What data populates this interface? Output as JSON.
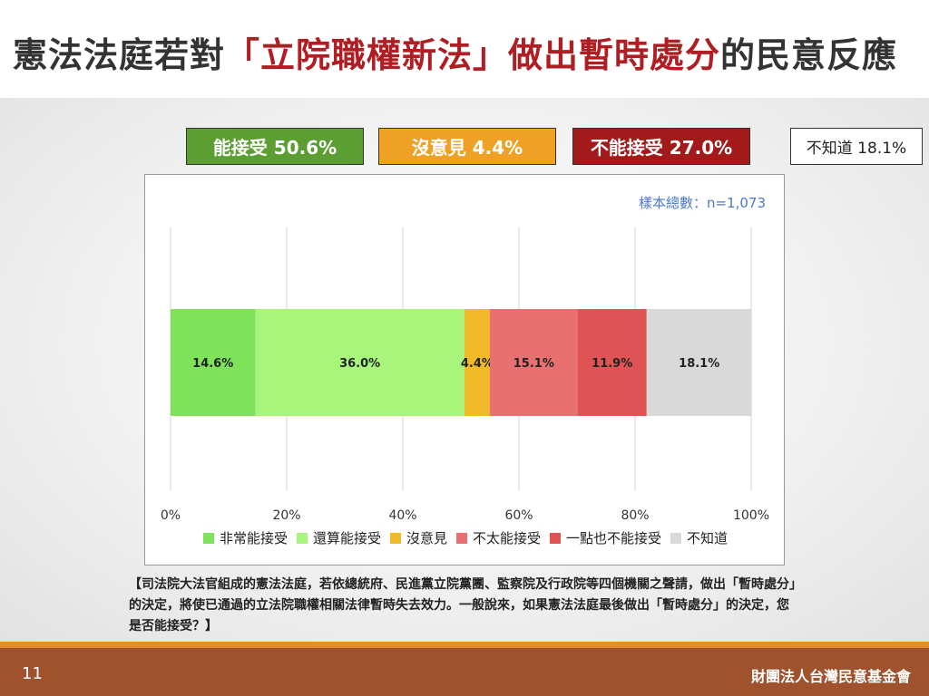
{
  "title": {
    "prefix": "憲法法庭若對",
    "highlight": "「立院職權新法」做出暫時處分",
    "suffix": "的民意反應"
  },
  "summary": {
    "accept": "能接受 50.6%",
    "neutral": "沒意見 4.4%",
    "reject": "不能接受 27.0%",
    "unknown": "不知道 18.1%"
  },
  "sample_note": "樣本總數：n=1,073",
  "question": "【司法院大法官組成的憲法法庭，若依總統府、民進黨立院黨團、監察院及行政院等四個機關之聲請，做出「暫時處分」的決定，將使已通過的立法院職權相關法律暫時失去效力。一般說來，如果憲法法庭最後做出「暫時處分」的決定，您是否能接受？】",
  "footer": {
    "page": "11",
    "org": "財團法人台灣民意基金會"
  },
  "colors": {
    "accept_box": "#5c9e31",
    "neutral_box": "#eea124",
    "reject_box": "#a31a1a",
    "title_highlight": "#b01e23",
    "footer": "#a0522d"
  },
  "chart_data": {
    "type": "bar",
    "orientation": "horizontal-stacked",
    "xlim": [
      0,
      100
    ],
    "xticks": [
      "0%",
      "20%",
      "40%",
      "60%",
      "80%",
      "100%"
    ],
    "grid": true,
    "legend_position": "bottom",
    "series": [
      {
        "name": "非常能接受",
        "value": 14.6,
        "label": "14.6%",
        "color": "#7ee35a"
      },
      {
        "name": "還算能接受",
        "value": 36.0,
        "label": "36.0%",
        "color": "#a8f57c"
      },
      {
        "name": "沒意見",
        "value": 4.4,
        "label": "4.4%",
        "color": "#f0b928"
      },
      {
        "name": "不太能接受",
        "value": 15.1,
        "label": "15.1%",
        "color": "#e87070"
      },
      {
        "name": "一點也不能接受",
        "value": 11.9,
        "label": "11.9%",
        "color": "#e05355"
      },
      {
        "name": "不知道",
        "value": 18.1,
        "label": "18.1%",
        "color": "#d9d9d9"
      }
    ]
  }
}
